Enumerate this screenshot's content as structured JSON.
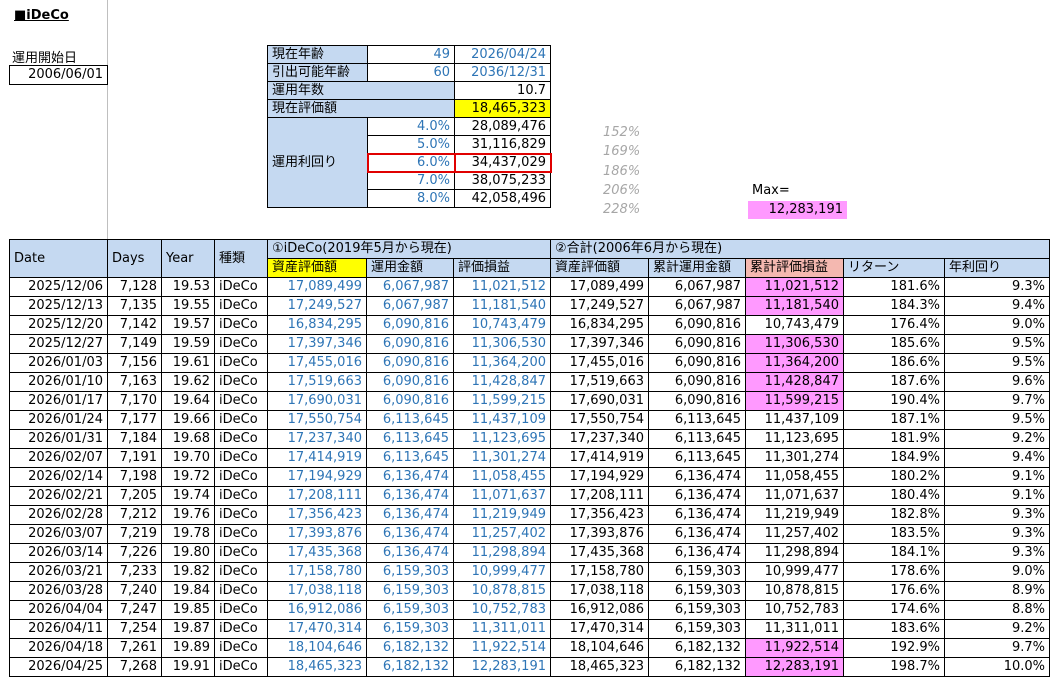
{
  "title": "■iDeCo",
  "start": {
    "label": "運用開始日",
    "date": "2006/06/01"
  },
  "summary": {
    "age_label": "現在年齢",
    "age": "49",
    "age_date": "2026/04/24",
    "withdraw_label": "引出可能年齢",
    "withdraw_age": "60",
    "withdraw_date": "2036/12/31",
    "years_label": "運用年数",
    "years": "10.7",
    "value_label": "現在評価額",
    "value": "18,465,323",
    "rate_label": "運用利回り",
    "rates": [
      {
        "rate": "4.0%",
        "amount": "28,089,476",
        "pct": "152%"
      },
      {
        "rate": "5.0%",
        "amount": "31,116,829",
        "pct": "169%"
      },
      {
        "rate": "6.0%",
        "amount": "34,437,029",
        "pct": "186%"
      },
      {
        "rate": "7.0%",
        "amount": "38,075,233",
        "pct": "206%"
      },
      {
        "rate": "8.0%",
        "amount": "42,058,496",
        "pct": "228%"
      }
    ]
  },
  "max": {
    "label": "Max=",
    "value": "12,283,191"
  },
  "table": {
    "headers": {
      "date": "Date",
      "days": "Days",
      "year": "Year",
      "kind": "種類",
      "group1": "①iDeCo(2019年5月から現在)",
      "group2": "②合計(2006年6月から現在)",
      "asset": "資産評価額",
      "invest": "運用金額",
      "gain": "評価損益",
      "asset2": "資産評価額",
      "cum_invest": "累計運用金額",
      "cum_gain": "累計評価損益",
      "ret": "リターン",
      "annual": "年利回り"
    },
    "rows": [
      {
        "date": "2025/12/06",
        "days": "7,128",
        "year": "19.53",
        "kind": "iDeCo",
        "a": "17,089,499",
        "i": "6,067,987",
        "g": "11,021,512",
        "a2": "17,089,499",
        "ci": "6,067,987",
        "cg": "11,021,512",
        "r": "181.6%",
        "y": "9.3%",
        "hl": true
      },
      {
        "date": "2025/12/13",
        "days": "7,135",
        "year": "19.55",
        "kind": "iDeCo",
        "a": "17,249,527",
        "i": "6,067,987",
        "g": "11,181,540",
        "a2": "17,249,527",
        "ci": "6,067,987",
        "cg": "11,181,540",
        "r": "184.3%",
        "y": "9.4%",
        "hl": true
      },
      {
        "date": "2025/12/20",
        "days": "7,142",
        "year": "19.57",
        "kind": "iDeCo",
        "a": "16,834,295",
        "i": "6,090,816",
        "g": "10,743,479",
        "a2": "16,834,295",
        "ci": "6,090,816",
        "cg": "10,743,479",
        "r": "176.4%",
        "y": "9.0%",
        "hl": false
      },
      {
        "date": "2025/12/27",
        "days": "7,149",
        "year": "19.59",
        "kind": "iDeCo",
        "a": "17,397,346",
        "i": "6,090,816",
        "g": "11,306,530",
        "a2": "17,397,346",
        "ci": "6,090,816",
        "cg": "11,306,530",
        "r": "185.6%",
        "y": "9.5%",
        "hl": true
      },
      {
        "date": "2026/01/03",
        "days": "7,156",
        "year": "19.61",
        "kind": "iDeCo",
        "a": "17,455,016",
        "i": "6,090,816",
        "g": "11,364,200",
        "a2": "17,455,016",
        "ci": "6,090,816",
        "cg": "11,364,200",
        "r": "186.6%",
        "y": "9.5%",
        "hl": true
      },
      {
        "date": "2026/01/10",
        "days": "7,163",
        "year": "19.62",
        "kind": "iDeCo",
        "a": "17,519,663",
        "i": "6,090,816",
        "g": "11,428,847",
        "a2": "17,519,663",
        "ci": "6,090,816",
        "cg": "11,428,847",
        "r": "187.6%",
        "y": "9.6%",
        "hl": true
      },
      {
        "date": "2026/01/17",
        "days": "7,170",
        "year": "19.64",
        "kind": "iDeCo",
        "a": "17,690,031",
        "i": "6,090,816",
        "g": "11,599,215",
        "a2": "17,690,031",
        "ci": "6,090,816",
        "cg": "11,599,215",
        "r": "190.4%",
        "y": "9.7%",
        "hl": true
      },
      {
        "date": "2026/01/24",
        "days": "7,177",
        "year": "19.66",
        "kind": "iDeCo",
        "a": "17,550,754",
        "i": "6,113,645",
        "g": "11,437,109",
        "a2": "17,550,754",
        "ci": "6,113,645",
        "cg": "11,437,109",
        "r": "187.1%",
        "y": "9.5%",
        "hl": false
      },
      {
        "date": "2026/01/31",
        "days": "7,184",
        "year": "19.68",
        "kind": "iDeCo",
        "a": "17,237,340",
        "i": "6,113,645",
        "g": "11,123,695",
        "a2": "17,237,340",
        "ci": "6,113,645",
        "cg": "11,123,695",
        "r": "181.9%",
        "y": "9.2%",
        "hl": false
      },
      {
        "date": "2026/02/07",
        "days": "7,191",
        "year": "19.70",
        "kind": "iDeCo",
        "a": "17,414,919",
        "i": "6,113,645",
        "g": "11,301,274",
        "a2": "17,414,919",
        "ci": "6,113,645",
        "cg": "11,301,274",
        "r": "184.9%",
        "y": "9.4%",
        "hl": false
      },
      {
        "date": "2026/02/14",
        "days": "7,198",
        "year": "19.72",
        "kind": "iDeCo",
        "a": "17,194,929",
        "i": "6,136,474",
        "g": "11,058,455",
        "a2": "17,194,929",
        "ci": "6,136,474",
        "cg": "11,058,455",
        "r": "180.2%",
        "y": "9.1%",
        "hl": false
      },
      {
        "date": "2026/02/21",
        "days": "7,205",
        "year": "19.74",
        "kind": "iDeCo",
        "a": "17,208,111",
        "i": "6,136,474",
        "g": "11,071,637",
        "a2": "17,208,111",
        "ci": "6,136,474",
        "cg": "11,071,637",
        "r": "180.4%",
        "y": "9.1%",
        "hl": false
      },
      {
        "date": "2026/02/28",
        "days": "7,212",
        "year": "19.76",
        "kind": "iDeCo",
        "a": "17,356,423",
        "i": "6,136,474",
        "g": "11,219,949",
        "a2": "17,356,423",
        "ci": "6,136,474",
        "cg": "11,219,949",
        "r": "182.8%",
        "y": "9.3%",
        "hl": false
      },
      {
        "date": "2026/03/07",
        "days": "7,219",
        "year": "19.78",
        "kind": "iDeCo",
        "a": "17,393,876",
        "i": "6,136,474",
        "g": "11,257,402",
        "a2": "17,393,876",
        "ci": "6,136,474",
        "cg": "11,257,402",
        "r": "183.5%",
        "y": "9.3%",
        "hl": false
      },
      {
        "date": "2026/03/14",
        "days": "7,226",
        "year": "19.80",
        "kind": "iDeCo",
        "a": "17,435,368",
        "i": "6,136,474",
        "g": "11,298,894",
        "a2": "17,435,368",
        "ci": "6,136,474",
        "cg": "11,298,894",
        "r": "184.1%",
        "y": "9.3%",
        "hl": false
      },
      {
        "date": "2026/03/21",
        "days": "7,233",
        "year": "19.82",
        "kind": "iDeCo",
        "a": "17,158,780",
        "i": "6,159,303",
        "g": "10,999,477",
        "a2": "17,158,780",
        "ci": "6,159,303",
        "cg": "10,999,477",
        "r": "178.6%",
        "y": "9.0%",
        "hl": false
      },
      {
        "date": "2026/03/28",
        "days": "7,240",
        "year": "19.84",
        "kind": "iDeCo",
        "a": "17,038,118",
        "i": "6,159,303",
        "g": "10,878,815",
        "a2": "17,038,118",
        "ci": "6,159,303",
        "cg": "10,878,815",
        "r": "176.6%",
        "y": "8.9%",
        "hl": false
      },
      {
        "date": "2026/04/04",
        "days": "7,247",
        "year": "19.85",
        "kind": "iDeCo",
        "a": "16,912,086",
        "i": "6,159,303",
        "g": "10,752,783",
        "a2": "16,912,086",
        "ci": "6,159,303",
        "cg": "10,752,783",
        "r": "174.6%",
        "y": "8.8%",
        "hl": false
      },
      {
        "date": "2026/04/11",
        "days": "7,254",
        "year": "19.87",
        "kind": "iDeCo",
        "a": "17,470,314",
        "i": "6,159,303",
        "g": "11,311,011",
        "a2": "17,470,314",
        "ci": "6,159,303",
        "cg": "11,311,011",
        "r": "183.6%",
        "y": "9.2%",
        "hl": false
      },
      {
        "date": "2026/04/18",
        "days": "7,261",
        "year": "19.89",
        "kind": "iDeCo",
        "a": "18,104,646",
        "i": "6,182,132",
        "g": "11,922,514",
        "a2": "18,104,646",
        "ci": "6,182,132",
        "cg": "11,922,514",
        "r": "192.9%",
        "y": "9.7%",
        "hl": true
      },
      {
        "date": "2026/04/25",
        "days": "7,268",
        "year": "19.91",
        "kind": "iDeCo",
        "a": "18,465,323",
        "i": "6,182,132",
        "g": "12,283,191",
        "a2": "18,465,323",
        "ci": "6,182,132",
        "cg": "12,283,191",
        "r": "198.7%",
        "y": "10.0%",
        "hl": true
      }
    ]
  }
}
